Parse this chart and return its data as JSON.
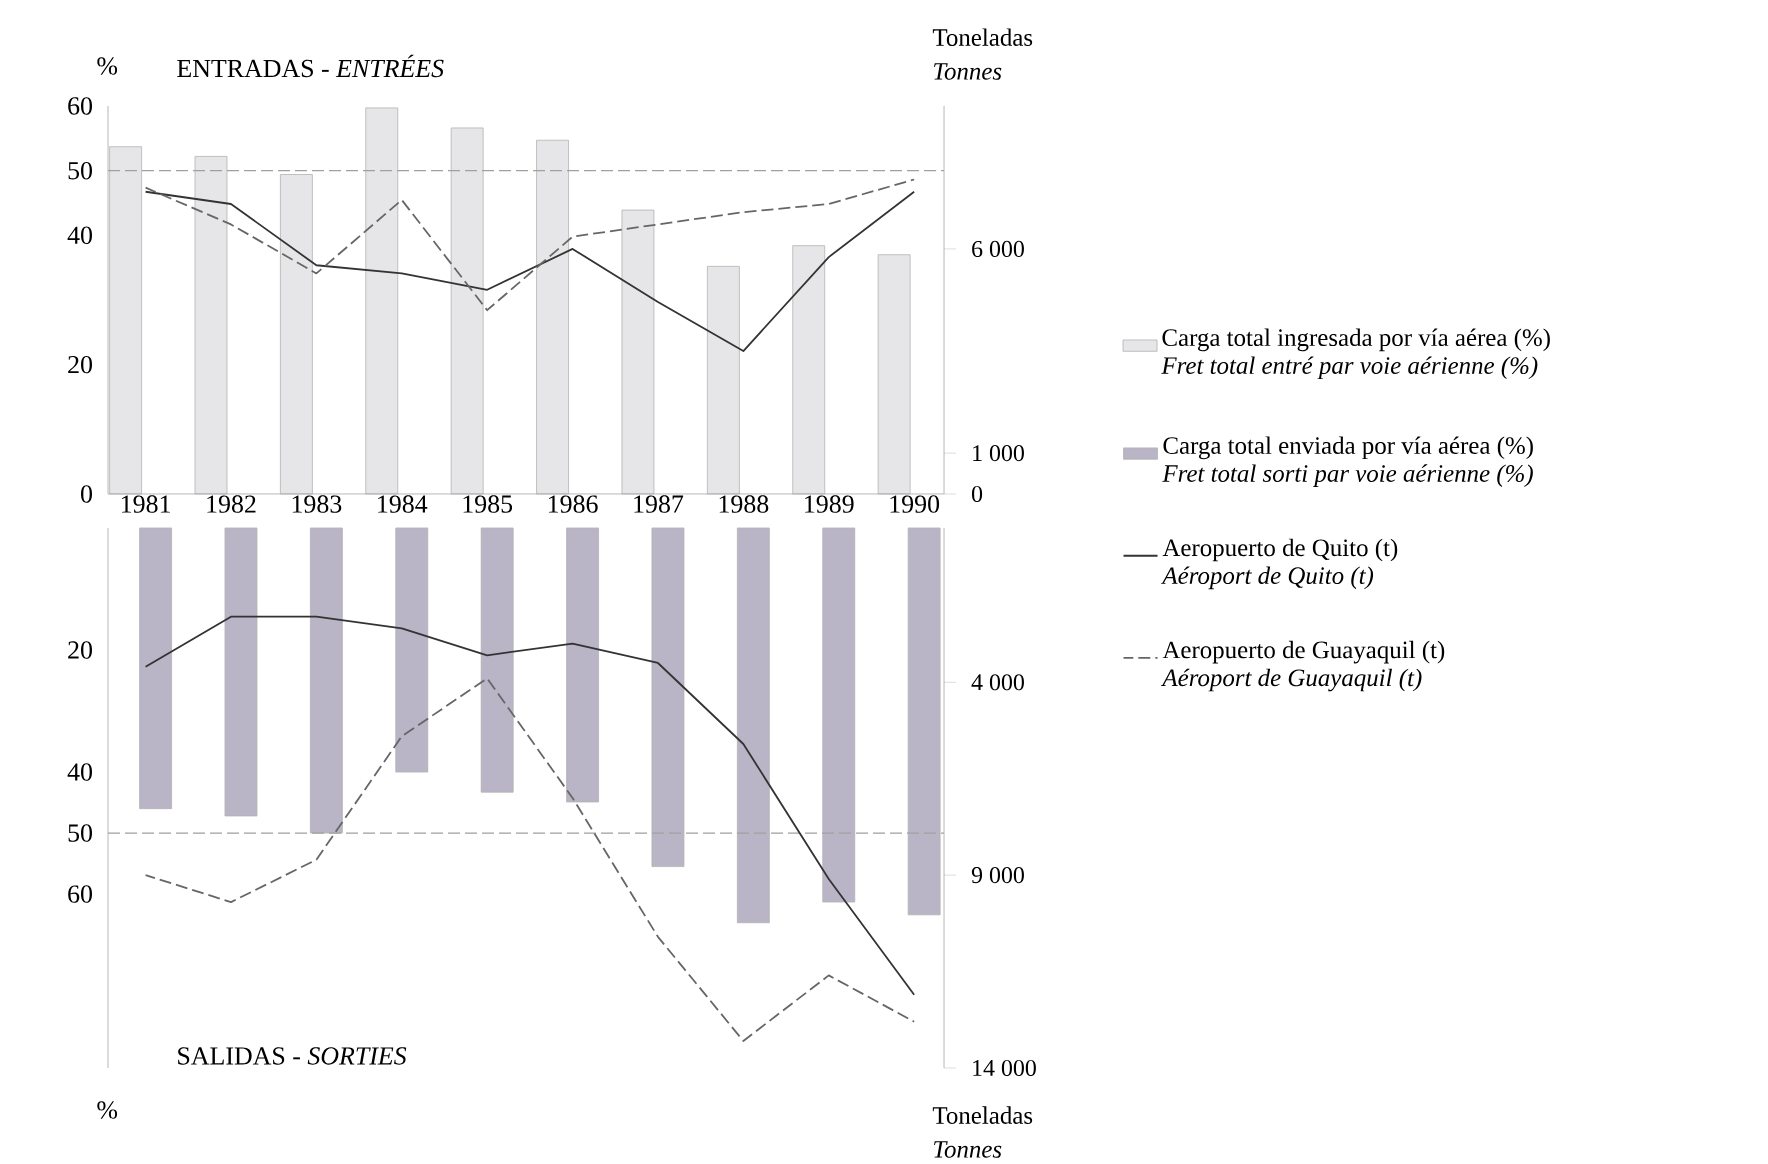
{
  "chart_data": [
    {
      "type": "bar",
      "categories": [
        "1981",
        "1982",
        "1983",
        "1984",
        "1985",
        "1986",
        "1987",
        "1988",
        "1989",
        "1990"
      ],
      "series": [
        {
          "name": "Carga total ingresada por vía aérea (%) *Fret total entré par voie aérienne (%)*",
          "color": "#e6e6e8",
          "values": [
            53.7,
            52.2,
            49.4,
            59.7,
            56.6,
            54.7,
            43.9,
            35.2,
            38.4,
            37
          ]
        },
        {
          "type": "line",
          "axis": "y2",
          "color": "#333333",
          "line_style": "solid",
          "values": [
            7400,
            7100,
            5600,
            5400,
            5000,
            6000,
            4700,
            3500,
            5800,
            7400
          ]
        },
        {
          "type": "line",
          "axis": "y2",
          "color": "#666666",
          "line_style": "dashed",
          "values": [
            7500,
            6600,
            5400,
            7200,
            4500,
            6300,
            6600,
            6900,
            7100,
            7700
          ]
        }
      ],
      "ylim": [
        0,
        60
      ],
      "yticks": [
        0,
        20,
        40,
        50,
        60
      ],
      "y2lim": [
        0,
        9500
      ],
      "y2ticks": [
        0,
        {
          "value": 1000,
          "label": "1 000"
        },
        {
          "value": 6000,
          "label": "6 000"
        }
      ],
      "ylabel": "%",
      "y2label": "Toneladas *Tonnes*",
      "annotations": [
        "ENTRADAS - *ENTRÉES*"
      ],
      "ref_lines": [
        {
          "axis": "y",
          "value": 50,
          "line_style": "dashed",
          "color": "#a0a0a0"
        }
      ],
      "legend": "right"
    },
    {
      "type": "bar",
      "categories": [
        "1981",
        "1982",
        "1983",
        "1984",
        "1985",
        "1986",
        "1987",
        "1988",
        "1989",
        "1990"
      ],
      "series": [
        {
          "name": "Carga total enviada por vía aérea (%) *Fret total sorti par voie aérienne (%)*",
          "color": "#b9b4c6",
          "values": [
            46,
            47.2,
            50,
            40,
            43.3,
            44.9,
            55.5,
            64.7,
            61.3,
            63.4
          ]
        },
        {
          "name": "Aeropuerto de Quito (t) *Aéroport de Quito (t)*",
          "type": "line",
          "axis": "y2",
          "color": "#333333",
          "line_style": "solid",
          "values": [
            3600,
            2300,
            2300,
            2600,
            3300,
            3000,
            3500,
            5600,
            9100,
            12100
          ]
        },
        {
          "name": "Aeropuerto de Guayaquil (t) *Aéroport de Guayaquil (t)*",
          "type": "line",
          "axis": "y2",
          "color": "#666666",
          "line_style": "dashed",
          "values": [
            9000,
            9700,
            8600,
            5400,
            3900,
            7000,
            10600,
            13300,
            11600,
            12800
          ]
        }
      ],
      "ylim": [
        88.5,
        0
      ],
      "yticks": [
        20,
        40,
        50,
        60
      ],
      "y2lim": [
        14000,
        0
      ],
      "y2ticks": [
        {
          "value": 4000,
          "label": "4 000"
        },
        {
          "value": 9000,
          "label": "9 000"
        },
        {
          "value": 14000,
          "label": "14 000"
        }
      ],
      "tick_labels": "y",
      "ylabel": "%",
      "y2label": "Toneladas *Tonnes*",
      "annotations": [
        "SALIDAS - *SORTIES*"
      ],
      "ref_lines": [
        {
          "axis": "y",
          "value": 50,
          "line_style": "dashed",
          "color": "#a0a0a0"
        }
      ],
      "legend": "right"
    }
  ]
}
